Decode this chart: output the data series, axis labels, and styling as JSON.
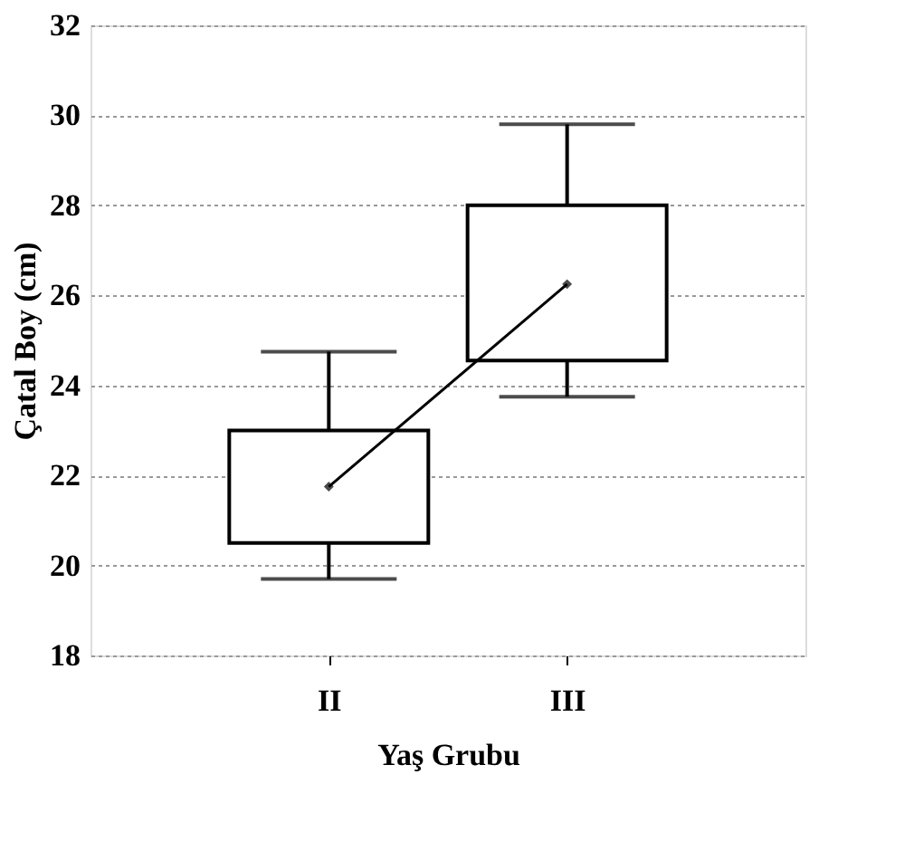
{
  "chart_data": {
    "type": "box",
    "xlabel": "Yaş Grubu",
    "ylabel": "Çatal Boy (cm)",
    "categories": [
      "II",
      "III"
    ],
    "boxes": [
      {
        "low": 19.7,
        "q1": 20.5,
        "median": 21.75,
        "q3": 23.0,
        "high": 24.75
      },
      {
        "low": 23.75,
        "q1": 24.55,
        "median": 26.25,
        "q3": 28.0,
        "high": 29.8
      }
    ],
    "series": [
      {
        "type": "line",
        "color": "#000000",
        "values": [
          21.75,
          26.25
        ]
      }
    ],
    "ylim": [
      18,
      32
    ],
    "yticks": [
      18,
      20,
      22,
      24,
      26,
      28,
      30,
      32
    ],
    "grid": "y",
    "marker": "none",
    "line_style": "solid"
  }
}
